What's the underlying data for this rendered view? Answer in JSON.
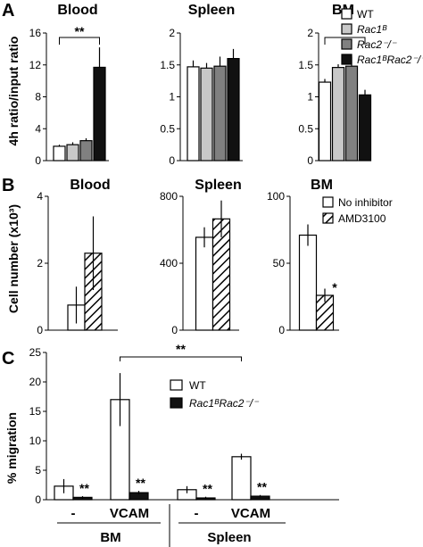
{
  "panel_letters": {
    "a": "A",
    "b": "B",
    "c": "C"
  },
  "legends": {
    "a": [
      {
        "label": "WT",
        "italic": false,
        "color": "#ffffff"
      },
      {
        "label": "Rac1ᴮ",
        "italic": true,
        "color": "#c8c8c8"
      },
      {
        "label": "Rac2⁻/⁻",
        "italic": true,
        "color": "#808080"
      },
      {
        "label": "Rac1ᴮRac2⁻/⁻",
        "italic": true,
        "color": "#111111"
      }
    ],
    "b": [
      {
        "label": "No inhibitor",
        "fill": "#ffffff"
      },
      {
        "label": "AMD3100",
        "fill": "hatch"
      }
    ],
    "c": [
      {
        "label": "WT",
        "color": "#ffffff"
      },
      {
        "label": "Rac1ᴮRac2⁻/⁻",
        "color": "#111111"
      }
    ]
  },
  "chart_data": [
    {
      "panel": "A",
      "type": "bar",
      "ylabel": "4h ratio/input ratio",
      "subplots": [
        {
          "title": "Blood",
          "ylim": [
            0,
            16
          ],
          "yticks": [
            0,
            4,
            8,
            12,
            16
          ],
          "values": [
            1.8,
            2.0,
            2.5,
            11.7
          ],
          "errors": [
            0.2,
            0.3,
            0.3,
            2.5
          ],
          "significance": [
            {
              "label": "**",
              "from": 0,
              "to": 3
            }
          ]
        },
        {
          "title": "Spleen",
          "ylim": [
            0,
            2.0
          ],
          "yticks": [
            0,
            0.5,
            1.0,
            1.5,
            2.0
          ],
          "values": [
            1.47,
            1.45,
            1.48,
            1.6
          ],
          "errors": [
            0.1,
            0.08,
            0.15,
            0.15
          ],
          "significance": []
        },
        {
          "title": "BM",
          "ylim": [
            0,
            2.0
          ],
          "yticks": [
            0,
            0.5,
            1.0,
            1.5,
            2.0
          ],
          "values": [
            1.23,
            1.46,
            1.48,
            1.03
          ],
          "errors": [
            0.05,
            0.05,
            0.15,
            0.08
          ],
          "significance": [
            {
              "label": "*",
              "from": 0,
              "to": 3
            }
          ]
        }
      ]
    },
    {
      "panel": "B",
      "type": "bar",
      "ylabel": "Cell number (x10³)",
      "series": [
        "No inhibitor",
        "AMD3100"
      ],
      "subplots": [
        {
          "title": "Blood",
          "ylim": [
            0,
            4
          ],
          "yticks": [
            0,
            2,
            4
          ],
          "values": [
            0.75,
            2.3
          ],
          "errors": [
            0.55,
            1.1
          ],
          "annotations": [
            "",
            ""
          ]
        },
        {
          "title": "Spleen",
          "ylim": [
            0,
            800
          ],
          "yticks": [
            0,
            400,
            800
          ],
          "values": [
            555,
            665
          ],
          "errors": [
            60,
            110
          ],
          "annotations": [
            "",
            ""
          ]
        },
        {
          "title": "BM",
          "ylim": [
            0,
            100
          ],
          "yticks": [
            0,
            50,
            100
          ],
          "values": [
            71,
            26
          ],
          "errors": [
            8,
            5
          ],
          "annotations": [
            "",
            "*"
          ]
        }
      ]
    },
    {
      "panel": "C",
      "type": "bar",
      "ylabel": "% migration",
      "ylim": [
        0,
        25
      ],
      "yticks": [
        0,
        5,
        10,
        15,
        20,
        25
      ],
      "series": [
        {
          "name": "WT",
          "color": "#ffffff"
        },
        {
          "name": "Rac1ᴮRac2⁻/⁻",
          "color": "#111111"
        }
      ],
      "groups": [
        {
          "label": "-",
          "tissue": "BM",
          "values": [
            2.3,
            0.4
          ],
          "errors": [
            1.2,
            0.2
          ],
          "annotation": "**"
        },
        {
          "label": "VCAM",
          "tissue": "BM",
          "values": [
            17.0,
            1.2
          ],
          "errors": [
            4.5,
            0.3
          ],
          "annotation": "**"
        },
        {
          "label": "-",
          "tissue": "Spleen",
          "values": [
            1.7,
            0.3
          ],
          "errors": [
            0.6,
            0.2
          ],
          "annotation": "**"
        },
        {
          "label": "VCAM",
          "tissue": "Spleen",
          "values": [
            7.3,
            0.6
          ],
          "errors": [
            0.5,
            0.2
          ],
          "annotation": "**"
        }
      ],
      "tissue_labels": [
        "BM",
        "Spleen"
      ],
      "significance": [
        {
          "label": "**",
          "from": 1,
          "to": 3
        }
      ]
    }
  ]
}
